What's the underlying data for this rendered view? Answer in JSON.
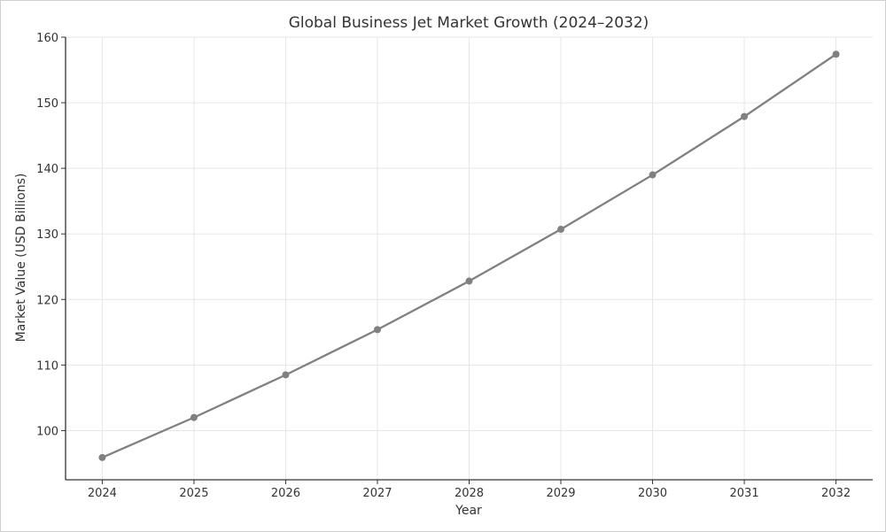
{
  "chart_data": {
    "type": "line",
    "title": "Global Business Jet Market Growth (2024–2032)",
    "xlabel": "Year",
    "ylabel": "Market Value (USD Billions)",
    "x": [
      2024,
      2025,
      2026,
      2027,
      2028,
      2029,
      2030,
      2031,
      2032
    ],
    "x_tick_labels": [
      "2024",
      "2025",
      "2026",
      "2027",
      "2028",
      "2029",
      "2030",
      "2031",
      "2032"
    ],
    "y_ticks": [
      100,
      110,
      120,
      130,
      140,
      150,
      160
    ],
    "y_tick_labels": [
      "100",
      "110",
      "120",
      "130",
      "140",
      "150",
      "160"
    ],
    "ylim": [
      92.5,
      160
    ],
    "xlim": [
      2023.6,
      2032.4
    ],
    "grid": true,
    "series": [
      {
        "values": [
          95.9,
          102.0,
          108.5,
          115.4,
          122.8,
          130.7,
          139.0,
          147.9,
          157.4
        ],
        "color": "#808080",
        "marker": "circle"
      }
    ]
  }
}
